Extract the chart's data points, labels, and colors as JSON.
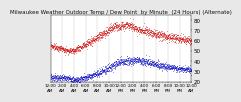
{
  "title": "Milwaukee Weather Outdoor Temp / Dew Point  by Minute  (24 Hours) (Alternate)",
  "title_fontsize": 4.0,
  "bg_color": "#e8e8e8",
  "plot_bg": "#ffffff",
  "grid_color": "#aaaaaa",
  "temp_color": "#cc0000",
  "dew_color": "#0000bb",
  "ylim": [
    20,
    85
  ],
  "yticks": [
    20,
    30,
    40,
    50,
    60,
    70,
    80
  ],
  "ylabel_fontsize": 4.0,
  "xlabel_fontsize": 3.0,
  "n_points": 1440,
  "vgrid_hours": [
    2,
    4,
    6,
    8,
    10,
    12,
    14,
    16,
    18,
    20,
    22
  ]
}
